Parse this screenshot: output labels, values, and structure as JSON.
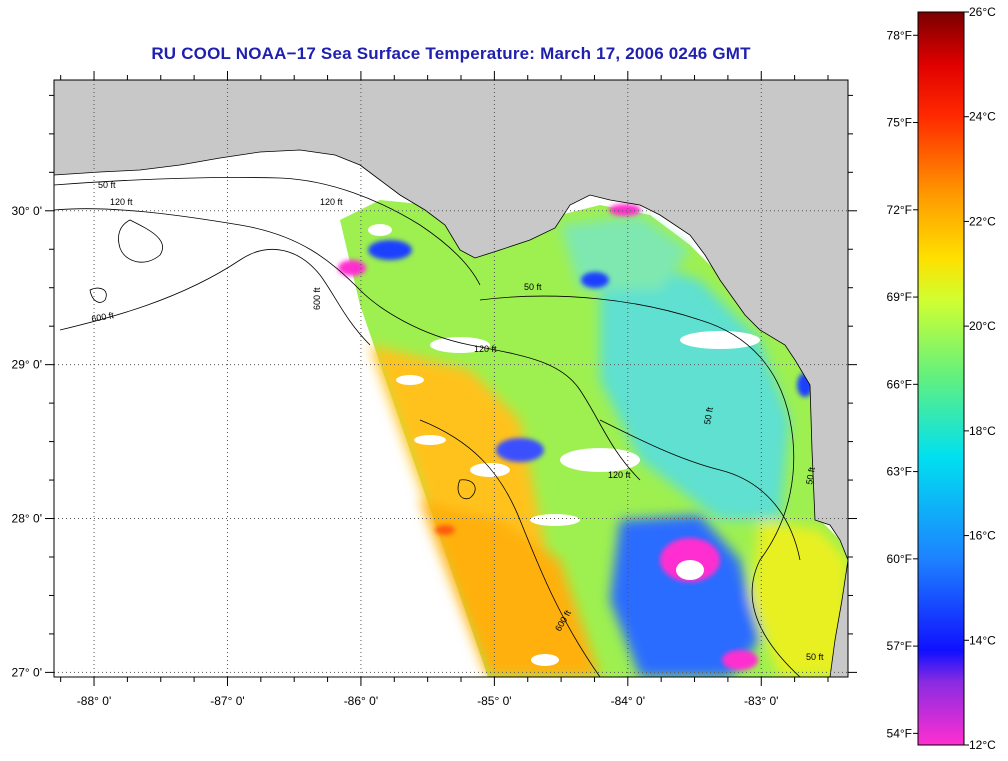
{
  "title": "RU COOL  NOAA−17  Sea Surface Temperature:  March 17, 2006 0246 GMT",
  "map": {
    "lon_range": [
      -88.3,
      -82.35
    ],
    "lat_range": [
      26.97,
      30.85
    ],
    "lon_ticks": [
      {
        "value": -88,
        "label": "-88° 0'"
      },
      {
        "value": -87,
        "label": "-87° 0'"
      },
      {
        "value": -86,
        "label": "-86° 0'"
      },
      {
        "value": -85,
        "label": "-85° 0'"
      },
      {
        "value": -84,
        "label": "-84° 0'"
      },
      {
        "value": -83,
        "label": "-83° 0'"
      }
    ],
    "lat_ticks": [
      {
        "value": 30,
        "label": "30° 0'"
      },
      {
        "value": 29,
        "label": "29° 0'"
      },
      {
        "value": 28,
        "label": "28° 0'"
      },
      {
        "value": 27,
        "label": "27° 0'"
      }
    ],
    "contour_labels": [
      "50 ft",
      "120 ft",
      "600 ft",
      "50 ft",
      "120 ft",
      "600 ft",
      "120 ft",
      "50 ft",
      "50 ft",
      "600 ft",
      "120 ft",
      "50 ft"
    ],
    "grid": "dotted",
    "land_color": "#c8c8c8",
    "nodata_color": "#ffffff"
  },
  "colorbar": {
    "min_c": 12,
    "max_c": 26,
    "celsius_labels": [
      {
        "value": 26,
        "label": "26°C"
      },
      {
        "value": 24,
        "label": "24°C"
      },
      {
        "value": 22,
        "label": "22°C"
      },
      {
        "value": 20,
        "label": "20°C"
      },
      {
        "value": 18,
        "label": "18°C"
      },
      {
        "value": 16,
        "label": "16°C"
      },
      {
        "value": 14,
        "label": "14°C"
      },
      {
        "value": 12,
        "label": "12°C"
      }
    ],
    "fahrenheit_labels": [
      {
        "value": 78,
        "label": "78°F"
      },
      {
        "value": 75,
        "label": "75°F"
      },
      {
        "value": 72,
        "label": "72°F"
      },
      {
        "value": 69,
        "label": "69°F"
      },
      {
        "value": 66,
        "label": "66°F"
      },
      {
        "value": 63,
        "label": "63°F"
      },
      {
        "value": 60,
        "label": "60°F"
      },
      {
        "value": 57,
        "label": "57°F"
      },
      {
        "value": 54,
        "label": "54°F"
      }
    ],
    "stops": [
      {
        "c": 12,
        "color": "#ff2fd0"
      },
      {
        "c": 13.2,
        "color": "#8a2be2"
      },
      {
        "c": 13.8,
        "color": "#1010ff"
      },
      {
        "c": 15.5,
        "color": "#1e7fff"
      },
      {
        "c": 17.5,
        "color": "#00e0f0"
      },
      {
        "c": 19,
        "color": "#60f080"
      },
      {
        "c": 20.5,
        "color": "#d0ff30"
      },
      {
        "c": 21.3,
        "color": "#ffe000"
      },
      {
        "c": 22.5,
        "color": "#ff9a00"
      },
      {
        "c": 24,
        "color": "#ff2a00"
      },
      {
        "c": 25,
        "color": "#e00000"
      },
      {
        "c": 26,
        "color": "#7a0000"
      }
    ]
  }
}
